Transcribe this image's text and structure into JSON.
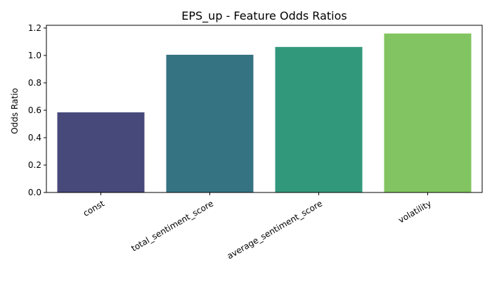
{
  "chart_data": {
    "type": "bar",
    "title": "EPS_up - Feature Odds Ratios",
    "xlabel": "",
    "ylabel": "Odds Ratio",
    "categories": [
      "const",
      "total_sentiment_score",
      "average_sentiment_score",
      "volatility"
    ],
    "values": [
      0.585,
      1.005,
      1.062,
      1.16
    ],
    "ylim": [
      0,
      1.22
    ],
    "yticks": [
      "0.0",
      "0.2",
      "0.4",
      "0.6",
      "0.8",
      "1.0",
      "1.2"
    ],
    "grid": false,
    "legend": "none",
    "colors": [
      "#48497b",
      "#357383",
      "#32987c",
      "#82c461"
    ]
  }
}
